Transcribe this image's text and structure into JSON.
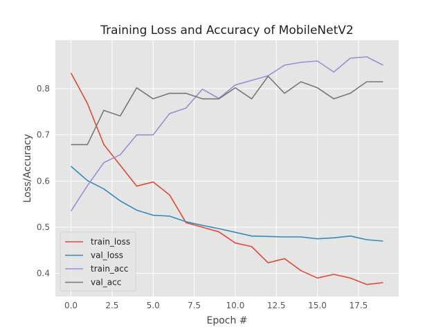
{
  "chart_data": {
    "type": "line",
    "title": "Training Loss and Accuracy of MobileNetV2",
    "xlabel": "Epoch #",
    "ylabel": "Loss/Accuracy",
    "xlim": [
      -0.95,
      19.95
    ],
    "ylim": [
      0.35,
      0.905
    ],
    "xticks": [
      0.0,
      2.5,
      5.0,
      7.5,
      10.0,
      12.5,
      15.0,
      17.5
    ],
    "xtick_labels": [
      "0.0",
      "2.5",
      "5.0",
      "7.5",
      "10.0",
      "12.5",
      "15.0",
      "17.5"
    ],
    "yticks": [
      0.4,
      0.5,
      0.6,
      0.7,
      0.8
    ],
    "ytick_labels": [
      "0.4",
      "0.5",
      "0.6",
      "0.7",
      "0.8"
    ],
    "grid": true,
    "legend_position": "lower-left",
    "x": [
      0,
      1,
      2,
      3,
      4,
      5,
      6,
      7,
      8,
      9,
      10,
      11,
      12,
      13,
      14,
      15,
      16,
      17,
      18,
      19
    ],
    "series": [
      {
        "name": "train_loss",
        "color": "#E24A33",
        "values": [
          0.834,
          0.768,
          0.679,
          0.634,
          0.589,
          0.598,
          0.57,
          0.51,
          0.5,
          0.49,
          0.466,
          0.458,
          0.423,
          0.432,
          0.406,
          0.39,
          0.398,
          0.39,
          0.376,
          0.38
        ]
      },
      {
        "name": "val_loss",
        "color": "#348ABD",
        "values": [
          0.632,
          0.601,
          0.583,
          0.557,
          0.537,
          0.526,
          0.524,
          0.512,
          0.504,
          0.497,
          0.489,
          0.481,
          0.48,
          0.479,
          0.479,
          0.475,
          0.477,
          0.481,
          0.473,
          0.47
        ]
      },
      {
        "name": "train_acc",
        "color": "#988ED5",
        "values": [
          0.535,
          0.59,
          0.64,
          0.657,
          0.7,
          0.7,
          0.746,
          0.758,
          0.799,
          0.779,
          0.808,
          0.818,
          0.828,
          0.851,
          0.857,
          0.86,
          0.836,
          0.866,
          0.869,
          0.851
        ]
      },
      {
        "name": "val_acc",
        "color": "#777777",
        "values": [
          0.679,
          0.679,
          0.753,
          0.741,
          0.802,
          0.778,
          0.79,
          0.79,
          0.778,
          0.778,
          0.802,
          0.778,
          0.827,
          0.79,
          0.815,
          0.802,
          0.778,
          0.79,
          0.815,
          0.815
        ]
      }
    ]
  }
}
